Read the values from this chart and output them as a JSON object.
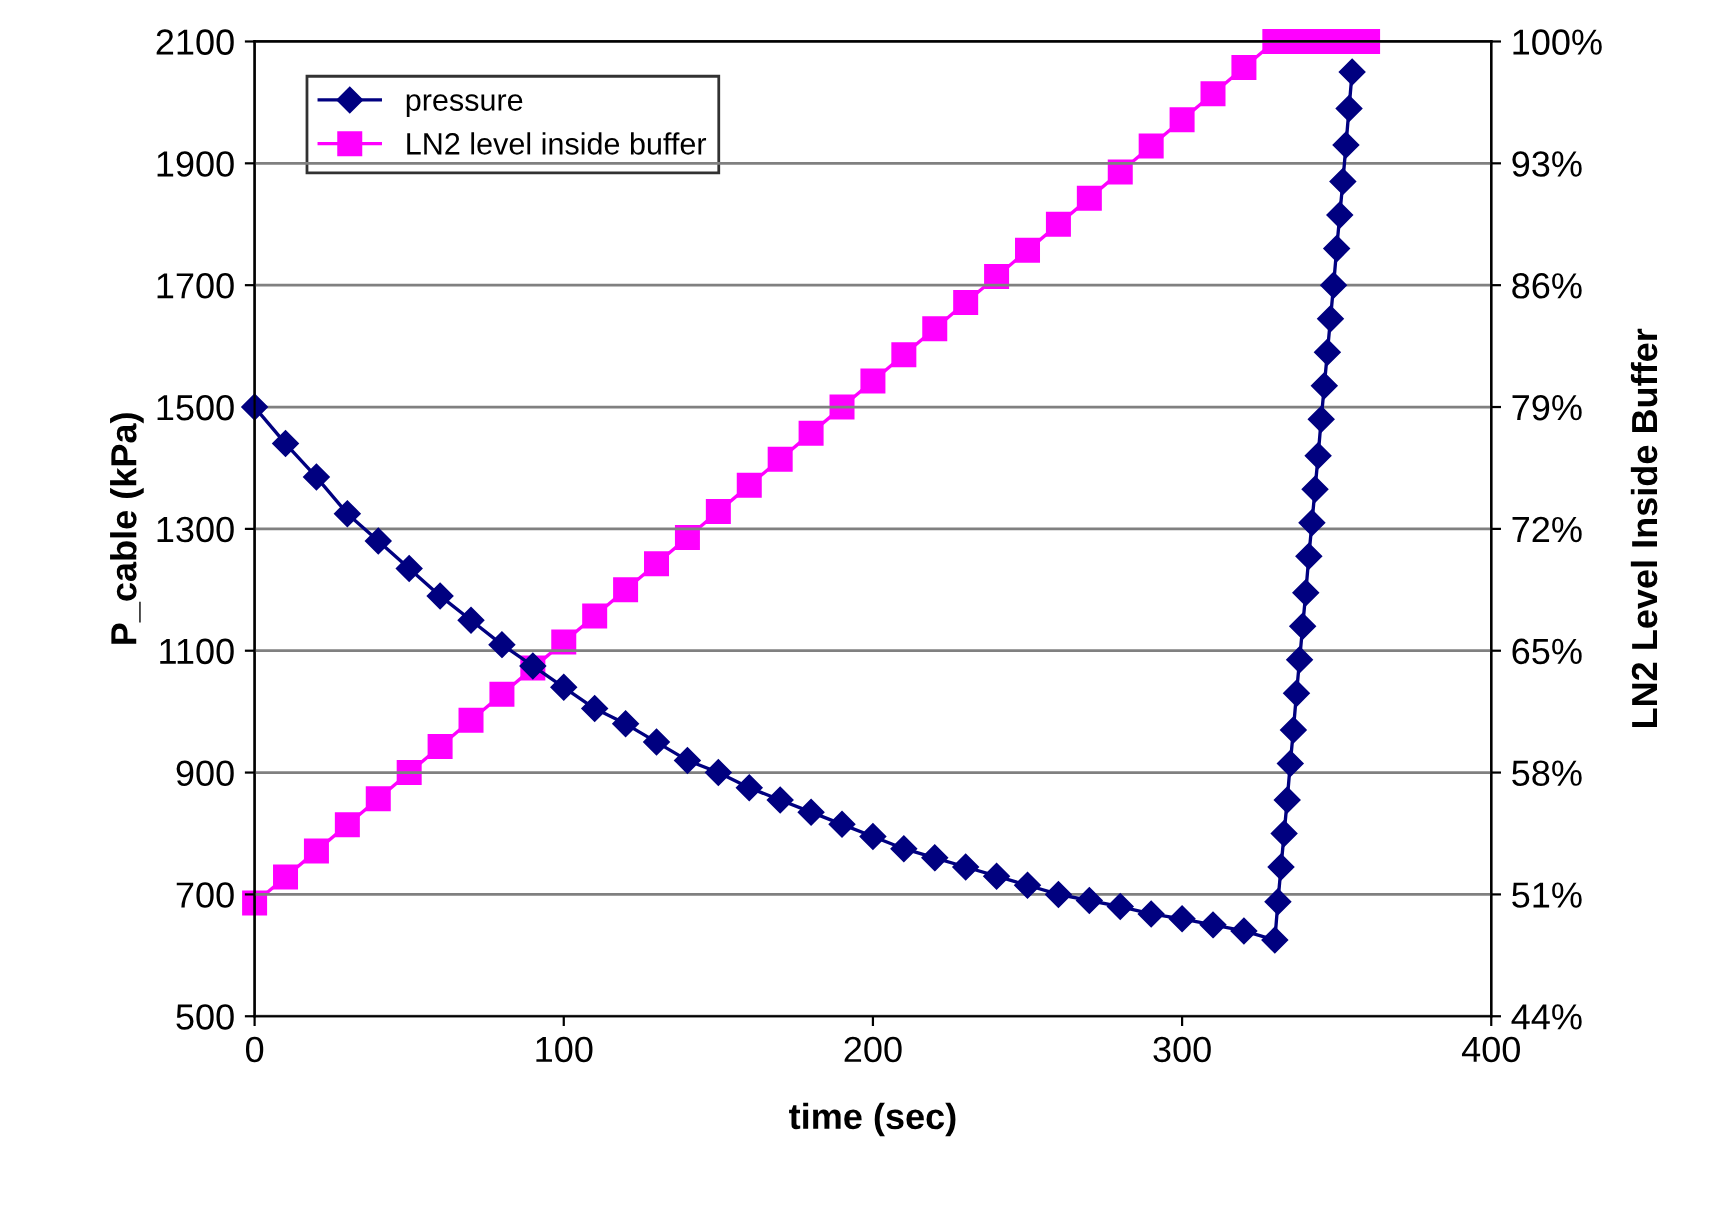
{
  "chart_data": {
    "type": "line",
    "xlabel": "time (sec)",
    "ylabel": "P_cable (kPa)",
    "y2label": "LN2 Level Inside Buffer",
    "xlim": [
      0,
      400
    ],
    "xticks": [
      0,
      100,
      200,
      300,
      400
    ],
    "ylim": [
      500,
      2100
    ],
    "yticks": [
      500,
      700,
      900,
      1100,
      1300,
      1500,
      1700,
      1900,
      2100
    ],
    "y2lim": [
      44,
      100
    ],
    "y2ticks": [
      {
        "value": 44,
        "label": "44%"
      },
      {
        "value": 51,
        "label": "51%"
      },
      {
        "value": 58,
        "label": "58%"
      },
      {
        "value": 65,
        "label": "65%"
      },
      {
        "value": 72,
        "label": "72%"
      },
      {
        "value": 79,
        "label": "79%"
      },
      {
        "value": 86,
        "label": "86%"
      },
      {
        "value": 93,
        "label": "93%"
      },
      {
        "value": 100,
        "label": "100%"
      }
    ],
    "grid": "y",
    "legend": "top left",
    "line_style": "solid",
    "series": [
      {
        "name": "pressure",
        "color": "#000080",
        "marker": "diamond",
        "x": [
          0,
          10,
          20,
          30,
          40,
          50,
          60,
          70,
          80,
          90,
          100,
          110,
          120,
          130,
          140,
          150,
          160,
          170,
          180,
          190,
          200,
          210,
          220,
          230,
          240,
          250,
          260,
          270,
          280,
          290,
          300,
          310,
          320,
          330,
          331,
          332,
          333,
          334,
          335,
          336,
          337,
          338,
          339,
          340,
          341,
          342,
          343,
          344,
          345,
          346,
          347,
          348,
          349,
          350,
          351,
          352,
          353,
          354,
          355
        ],
        "values": [
          1500,
          1440,
          1385,
          1325,
          1280,
          1235,
          1190,
          1150,
          1110,
          1075,
          1040,
          1005,
          980,
          950,
          920,
          900,
          875,
          855,
          835,
          815,
          795,
          775,
          760,
          745,
          730,
          715,
          700,
          690,
          680,
          668,
          660,
          650,
          640,
          625,
          688,
          745,
          800,
          855,
          915,
          970,
          1030,
          1085,
          1140,
          1195,
          1255,
          1310,
          1365,
          1420,
          1480,
          1535,
          1590,
          1645,
          1700,
          1760,
          1815,
          1870,
          1930,
          1990,
          2050
        ]
      },
      {
        "name": "LN2 level inside buffer",
        "color": "#ff00ff",
        "marker": "square",
        "axis": "y2",
        "x": [
          0,
          10,
          20,
          30,
          40,
          50,
          60,
          70,
          80,
          90,
          100,
          110,
          120,
          130,
          140,
          150,
          160,
          170,
          180,
          190,
          200,
          210,
          220,
          230,
          240,
          250,
          260,
          270,
          280,
          290,
          300,
          310,
          320,
          330,
          335,
          340,
          345,
          350,
          355,
          360
        ],
        "values": [
          50.5,
          52,
          53.5,
          55,
          56.5,
          58,
          59.5,
          61,
          62.5,
          64,
          65.5,
          67,
          68.5,
          70,
          71.5,
          73,
          74.5,
          76,
          77.5,
          79,
          80.5,
          82,
          83.5,
          85,
          86.5,
          88,
          89.5,
          91,
          92.5,
          94,
          95.5,
          97,
          98.5,
          100,
          100,
          100,
          100,
          100,
          100,
          100
        ]
      }
    ]
  }
}
